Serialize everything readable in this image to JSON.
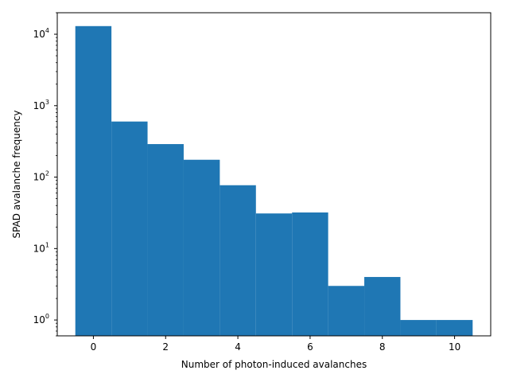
{
  "chart_data": {
    "type": "bar",
    "xlabel": "Number of photon-induced avalanches",
    "ylabel": "SPAD avalanche frequency",
    "xlim": [
      -1,
      11
    ],
    "ylim": [
      0.6,
      20000
    ],
    "yscale": "log",
    "grid": false,
    "bar_color": "#1f77b4",
    "bins": [
      {
        "x_start": -0.5,
        "x_end": 0.5,
        "value": 13000
      },
      {
        "x_start": 0.5,
        "x_end": 1.5,
        "value": 600
      },
      {
        "x_start": 1.5,
        "x_end": 2.5,
        "value": 290
      },
      {
        "x_start": 2.5,
        "x_end": 3.5,
        "value": 175
      },
      {
        "x_start": 3.5,
        "x_end": 4.5,
        "value": 77
      },
      {
        "x_start": 4.5,
        "x_end": 5.5,
        "value": 31
      },
      {
        "x_start": 5.5,
        "x_end": 6.5,
        "value": 32
      },
      {
        "x_start": 6.5,
        "x_end": 7.5,
        "value": 3
      },
      {
        "x_start": 7.5,
        "x_end": 8.5,
        "value": 4
      },
      {
        "x_start": 8.5,
        "x_end": 9.5,
        "value": 1
      },
      {
        "x_start": 9.5,
        "x_end": 10.5,
        "value": 1
      }
    ],
    "x_ticks": [
      0,
      2,
      4,
      6,
      8,
      10
    ],
    "y_ticks": [
      {
        "value": 1,
        "mantissa": "10",
        "exp": "0"
      },
      {
        "value": 10,
        "mantissa": "10",
        "exp": "1"
      },
      {
        "value": 100,
        "mantissa": "10",
        "exp": "2"
      },
      {
        "value": 1000,
        "mantissa": "10",
        "exp": "3"
      },
      {
        "value": 10000,
        "mantissa": "10",
        "exp": "4"
      }
    ]
  }
}
